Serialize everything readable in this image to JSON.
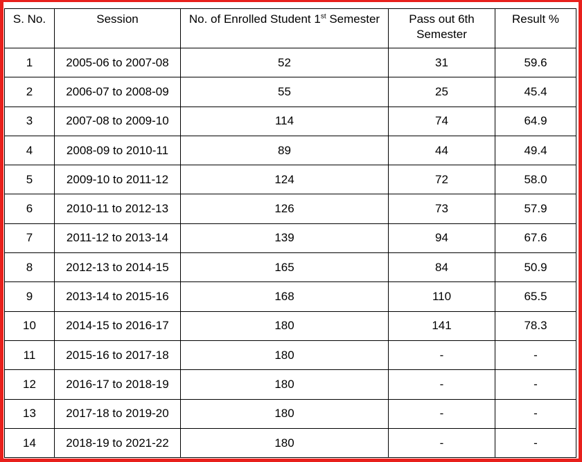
{
  "table": {
    "headers": {
      "sno": "S. No.",
      "session": "Session",
      "enrolled_prefix": "No. of Enrolled Student 1",
      "enrolled_sup": "st",
      "enrolled_suffix": " Semester",
      "pass": "Pass out 6th Semester",
      "result": "Result %"
    },
    "rows": [
      {
        "sno": "1",
        "session": "2005-06 to 2007-08",
        "enrolled": "52",
        "pass": "31",
        "result": "59.6"
      },
      {
        "sno": "2",
        "session": "2006-07 to 2008-09",
        "enrolled": "55",
        "pass": "25",
        "result": "45.4"
      },
      {
        "sno": "3",
        "session": "2007-08 to 2009-10",
        "enrolled": "114",
        "pass": "74",
        "result": "64.9"
      },
      {
        "sno": "4",
        "session": "2008-09 to 2010-11",
        "enrolled": "89",
        "pass": "44",
        "result": "49.4"
      },
      {
        "sno": "5",
        "session": "2009-10 to 2011-12",
        "enrolled": "124",
        "pass": "72",
        "result": "58.0"
      },
      {
        "sno": "6",
        "session": "2010-11 to 2012-13",
        "enrolled": "126",
        "pass": "73",
        "result": "57.9"
      },
      {
        "sno": "7",
        "session": "2011-12 to 2013-14",
        "enrolled": "139",
        "pass": "94",
        "result": "67.6"
      },
      {
        "sno": "8",
        "session": "2012-13 to 2014-15",
        "enrolled": "165",
        "pass": "84",
        "result": "50.9"
      },
      {
        "sno": "9",
        "session": "2013-14 to 2015-16",
        "enrolled": "168",
        "pass": "110",
        "result": "65.5"
      },
      {
        "sno": "10",
        "session": "2014-15 to 2016-17",
        "enrolled": "180",
        "pass": "141",
        "result": "78.3"
      },
      {
        "sno": "11",
        "session": "2015-16 to 2017-18",
        "enrolled": "180",
        "pass": "-",
        "result": "-"
      },
      {
        "sno": "12",
        "session": "2016-17 to 2018-19",
        "enrolled": "180",
        "pass": "-",
        "result": "-"
      },
      {
        "sno": "13",
        "session": "2017-18 to 2019-20",
        "enrolled": "180",
        "pass": "-",
        "result": "-"
      },
      {
        "sno": "14",
        "session": "2018-19 to 2021-22",
        "enrolled": "180",
        "pass": "-",
        "result": "-"
      }
    ]
  },
  "colors": {
    "frame_border": "#e8201c",
    "grid_line": "#000000",
    "text": "#000000",
    "background": "#ffffff"
  }
}
